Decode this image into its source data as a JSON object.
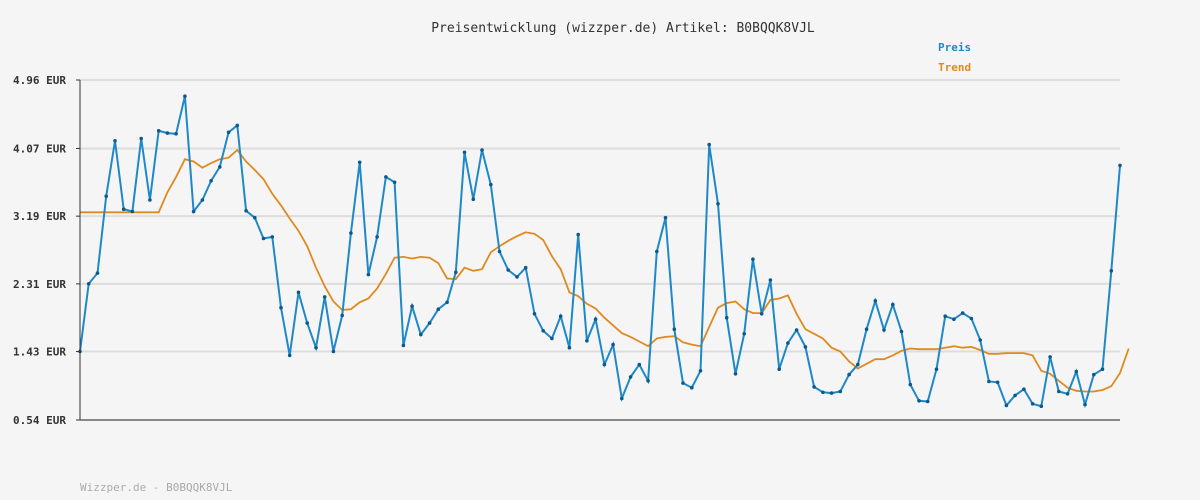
{
  "chart_data": {
    "type": "line",
    "title": "Preisentwicklung (wizzper.de) Artikel: B0BQQK8VJL",
    "footer": "Wizzper.de - B0BQQK8VJL",
    "y_tick_labels": [
      "4.96 EUR",
      "4.07 EUR",
      "3.19 EUR",
      "2.31 EUR",
      "1.43 EUR",
      "0.54 EUR"
    ],
    "y_ticks": [
      4.96,
      4.07,
      3.19,
      2.31,
      1.43,
      0.54
    ],
    "ylim": [
      0.54,
      4.96
    ],
    "grid": true,
    "legend_position": "top-right",
    "colors": {
      "preis": "#1f88c8",
      "trend": "#e08a1e",
      "grid": "#dddddd",
      "axis": "#333333"
    },
    "series": [
      {
        "name": "Preis",
        "values": [
          1.43,
          2.31,
          2.45,
          3.45,
          4.17,
          3.28,
          3.25,
          4.2,
          3.4,
          4.3,
          4.27,
          4.26,
          4.75,
          3.25,
          3.4,
          3.65,
          3.83,
          4.28,
          4.37,
          3.26,
          3.17,
          2.9,
          2.92,
          2.0,
          1.38,
          2.2,
          1.8,
          1.48,
          2.14,
          1.43,
          1.9,
          2.97,
          3.89,
          2.43,
          2.92,
          3.7,
          3.63,
          1.51,
          2.02,
          1.65,
          1.8,
          1.98,
          2.07,
          2.46,
          4.02,
          3.41,
          4.05,
          3.6,
          2.73,
          2.49,
          2.4,
          2.52,
          1.92,
          1.7,
          1.6,
          1.89,
          1.48,
          2.95,
          1.57,
          1.85,
          1.26,
          1.52,
          0.82,
          1.1,
          1.26,
          1.05,
          2.73,
          3.17,
          1.72,
          1.02,
          0.96,
          1.18,
          4.12,
          3.35,
          1.87,
          1.14,
          1.66,
          2.63,
          1.92,
          2.36,
          1.2,
          1.54,
          1.71,
          1.49,
          0.97,
          0.9,
          0.89,
          0.91,
          1.13,
          1.26,
          1.72,
          2.09,
          1.71,
          2.04,
          1.69,
          1.0,
          0.79,
          0.78,
          1.2,
          1.89,
          1.85,
          1.93,
          1.86,
          1.58,
          1.04,
          1.03,
          0.73,
          0.86,
          0.94,
          0.75,
          0.72,
          1.36,
          0.91,
          0.88,
          1.17,
          0.74,
          1.13,
          1.2,
          2.48,
          3.85
        ]
      },
      {
        "name": "Trend",
        "values": [
          3.24,
          3.24,
          3.24,
          3.24,
          3.24,
          3.24,
          3.24,
          3.24,
          3.24,
          3.24,
          3.5,
          3.7,
          3.93,
          3.9,
          3.82,
          3.88,
          3.93,
          3.95,
          4.05,
          3.9,
          3.79,
          3.67,
          3.48,
          3.33,
          3.16,
          3.0,
          2.8,
          2.52,
          2.28,
          2.08,
          1.97,
          1.98,
          2.07,
          2.12,
          2.25,
          2.44,
          2.65,
          2.66,
          2.64,
          2.66,
          2.65,
          2.58,
          2.38,
          2.37,
          2.52,
          2.48,
          2.5,
          2.72,
          2.8,
          2.87,
          2.93,
          2.98,
          2.96,
          2.88,
          2.67,
          2.5,
          2.2,
          2.15,
          2.05,
          1.99,
          1.87,
          1.77,
          1.67,
          1.62,
          1.56,
          1.5,
          1.6,
          1.62,
          1.63,
          1.55,
          1.52,
          1.5,
          1.75,
          2.0,
          2.06,
          2.08,
          1.98,
          1.93,
          1.93,
          2.1,
          2.12,
          2.16,
          1.92,
          1.72,
          1.66,
          1.6,
          1.48,
          1.43,
          1.3,
          1.21,
          1.27,
          1.33,
          1.33,
          1.38,
          1.44,
          1.47,
          1.46,
          1.46,
          1.46,
          1.48,
          1.5,
          1.48,
          1.49,
          1.45,
          1.4,
          1.4,
          1.41,
          1.41,
          1.41,
          1.38,
          1.18,
          1.14,
          1.05,
          0.96,
          0.92,
          0.91,
          0.91,
          0.93,
          0.98,
          1.15,
          1.47
        ]
      }
    ]
  }
}
